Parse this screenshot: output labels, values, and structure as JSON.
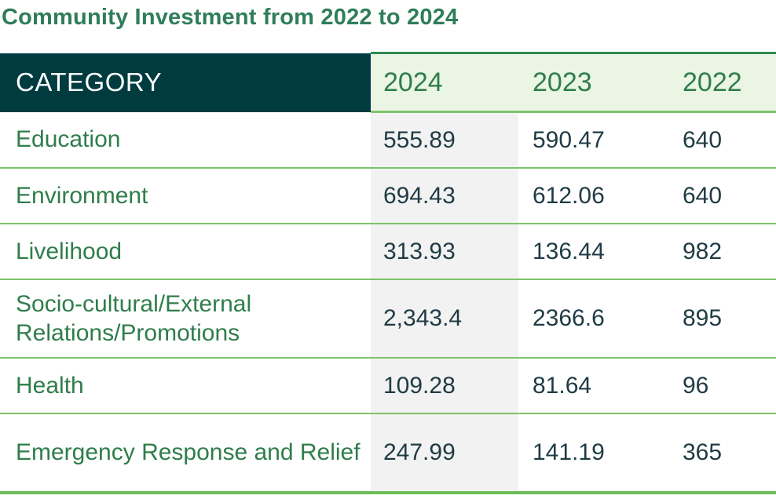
{
  "title": "Community Investment from 2022 to 2024",
  "table": {
    "headers": {
      "category": "CATEGORY",
      "y2024": "2024",
      "y2023": "2023",
      "y2022": "2022"
    },
    "rows": [
      {
        "category": "Education",
        "y2024": "555.89",
        "y2023": "590.47",
        "y2022": "640"
      },
      {
        "category": "Environment",
        "y2024": "694.43",
        "y2023": "612.06",
        "y2022": "640"
      },
      {
        "category": "Livelihood",
        "y2024": "313.93",
        "y2023": "136.44",
        "y2022": "982"
      },
      {
        "category": "Socio-cultural/External Relations/Promotions",
        "y2024": "2,343.4",
        "y2023": "2366.6",
        "y2022": "895"
      },
      {
        "category": "Health",
        "y2024": "109.28",
        "y2023": "81.64",
        "y2022": "96"
      },
      {
        "category": "Emergency Response and Relief",
        "y2024": "247.99",
        "y2023": "141.19",
        "y2022": "365"
      }
    ]
  },
  "colors": {
    "title": "#2f7d5b",
    "header_dark": "#003b3f",
    "header_light": "#eaf5e3",
    "accent_green": "#7cc46a",
    "highlight_column": "#f2f2f2",
    "value_text": "#1f3b44"
  }
}
